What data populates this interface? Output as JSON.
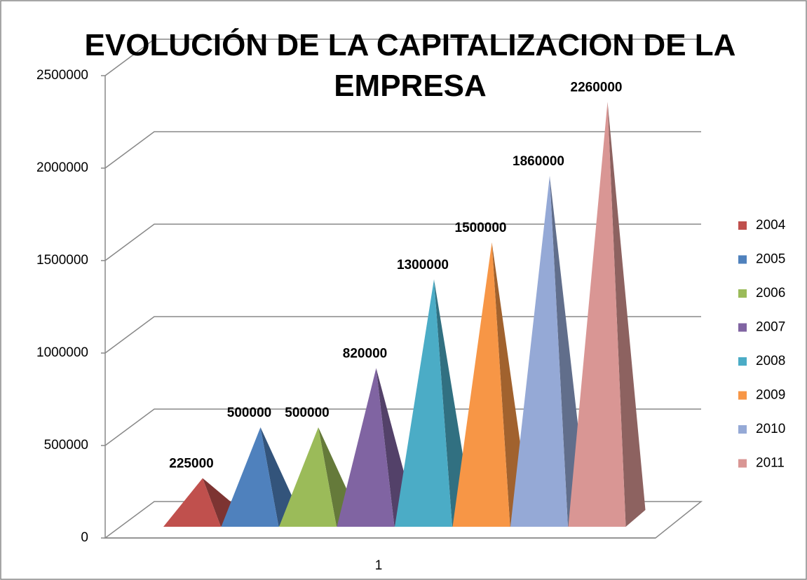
{
  "chart_data": {
    "type": "pyramid3d",
    "title": "EVOLUCIÓN DE LA CAPITALIZACION DE LA EMPRESA",
    "categories": [
      "1"
    ],
    "series": [
      {
        "name": "2004",
        "color": "#c0504d",
        "values": [
          225000
        ]
      },
      {
        "name": "2005",
        "color": "#4f81bd",
        "values": [
          500000
        ]
      },
      {
        "name": "2006",
        "color": "#9bbb59",
        "values": [
          500000
        ]
      },
      {
        "name": "2007",
        "color": "#8064a2",
        "values": [
          820000
        ]
      },
      {
        "name": "2008",
        "color": "#4bacc6",
        "values": [
          1300000
        ]
      },
      {
        "name": "2009",
        "color": "#f79646",
        "values": [
          1500000
        ]
      },
      {
        "name": "2010",
        "color": "#95a9d6",
        "values": [
          1860000
        ]
      },
      {
        "name": "2011",
        "color": "#d99694",
        "values": [
          2260000
        ]
      }
    ],
    "ylim": [
      0,
      2500000
    ],
    "yticks": [
      0,
      500000,
      1000000,
      1500000,
      2000000,
      2500000
    ],
    "grid": true,
    "legend": "right"
  }
}
